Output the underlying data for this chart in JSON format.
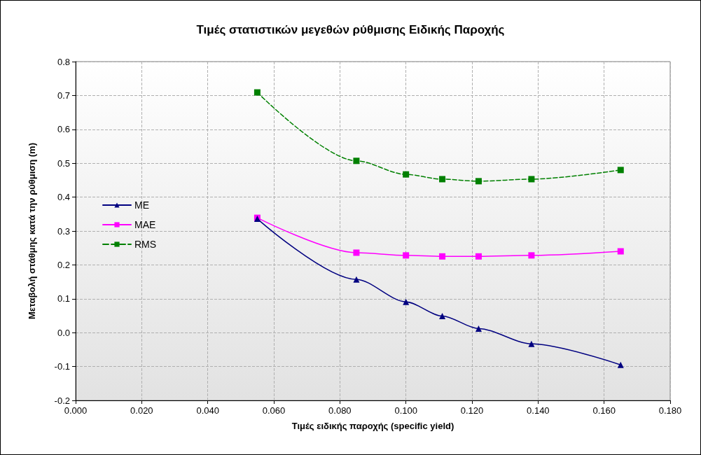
{
  "chart_data": {
    "type": "line",
    "title": "Τιμές στατιστικών μεγεθών ρύθμισης Ειδικής Παροχής",
    "xlabel": "Τιμές ειδικής παροχής (specific yield)",
    "ylabel": "Μεταβολή στάθμης κατά την ρύθμιση (m)",
    "x": [
      0.055,
      0.085,
      0.1,
      0.111,
      0.122,
      0.138,
      0.165
    ],
    "series": [
      {
        "name": "ME",
        "color": "#000080",
        "marker": "triangle",
        "line_style": "solid",
        "values": [
          0.336,
          0.157,
          0.091,
          0.049,
          0.012,
          -0.033,
          -0.095
        ]
      },
      {
        "name": "MAE",
        "color": "#ff00ff",
        "marker": "square",
        "line_style": "solid",
        "values": [
          0.339,
          0.236,
          0.228,
          0.225,
          0.225,
          0.228,
          0.24
        ]
      },
      {
        "name": "RMS",
        "color": "#008000",
        "marker": "square",
        "line_style": "dashed",
        "values": [
          0.709,
          0.507,
          0.467,
          0.453,
          0.447,
          0.453,
          0.48
        ]
      }
    ],
    "xlim": [
      0,
      0.18
    ],
    "xticks": [
      {
        "value": 0,
        "label": "0.000"
      },
      {
        "value": 0.02,
        "label": "0.020"
      },
      {
        "value": 0.04,
        "label": "0.040"
      },
      {
        "value": 0.06,
        "label": "0.060"
      },
      {
        "value": 0.08,
        "label": "0.080"
      },
      {
        "value": 0.1,
        "label": "0.100"
      },
      {
        "value": 0.12,
        "label": "0.120"
      },
      {
        "value": 0.14,
        "label": "0.140"
      },
      {
        "value": 0.16,
        "label": "0.160"
      },
      {
        "value": 0.18,
        "label": "0.180"
      }
    ],
    "ylim": [
      -0.2,
      0.8
    ],
    "yticks": [
      {
        "value": -0.2,
        "label": "-0.2"
      },
      {
        "value": -0.1,
        "label": "-0.1"
      },
      {
        "value": 0,
        "label": "0.0"
      },
      {
        "value": 0.1,
        "label": "0.1"
      },
      {
        "value": 0.2,
        "label": "0.2"
      },
      {
        "value": 0.3,
        "label": "0.3"
      },
      {
        "value": 0.4,
        "label": "0.4"
      },
      {
        "value": 0.5,
        "label": "0.5"
      },
      {
        "value": 0.6,
        "label": "0.6"
      },
      {
        "value": 0.7,
        "label": "0.7"
      },
      {
        "value": 0.8,
        "label": "0.8"
      }
    ],
    "grid": true,
    "legend": "left"
  }
}
